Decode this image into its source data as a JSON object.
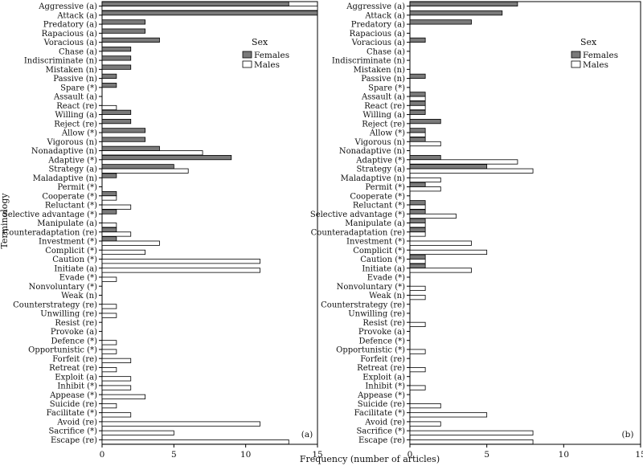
{
  "chart_data": [
    {
      "type": "bar",
      "panel_label": "(a)",
      "orientation": "horizontal",
      "categories": [
        "Aggressive (a)",
        "Attack (a)",
        "Predatory (a)",
        "Rapacious (a)",
        "Voracious (a)",
        "Chase (a)",
        "Indiscriminate (n)",
        "Mistaken (n)",
        "Passive (n)",
        "Spare (*)",
        "Assault (a)",
        "React (re)",
        "Willing (a)",
        "Reject (re)",
        "Allow (*)",
        "Vigorous (n)",
        "Nonadaptive (n)",
        "Adaptive (*)",
        "Strategy (a)",
        "Maladaptive (n)",
        "Permit (*)",
        "Cooperate (*)",
        "Reluctant (*)",
        "Selective advantage (*)",
        "Manipulate (a)",
        "Counteradaptation (re)",
        "Investment (*)",
        "Complicit (*)",
        "Caution (*)",
        "Initiate (a)",
        "Evade (*)",
        "Nonvoluntary (*)",
        "Weak (n)",
        "Counterstrategy (re)",
        "Unwilling (re)",
        "Resist (re)",
        "Provoke (a)",
        "Defence (*)",
        "Opportunistic (*)",
        "Forfeit (re)",
        "Retreat (re)",
        "Exploit (a)",
        "Inhibit (*)",
        "Appease (*)",
        "Suicide (re)",
        "Facilitate (*)",
        "Avoid (re)",
        "Sacrifice (*)",
        "Escape (re)"
      ],
      "series": [
        {
          "name": "Females",
          "color": "#7a7a7a",
          "values": [
            13,
            15,
            3,
            3,
            4,
            2,
            2,
            2,
            1,
            1,
            0,
            0,
            2,
            2,
            3,
            3,
            4,
            9,
            5,
            1,
            0,
            1,
            0,
            1,
            0,
            1,
            1,
            0,
            0,
            0,
            0,
            0,
            0,
            0,
            0,
            0,
            0,
            0,
            0,
            0,
            0,
            0,
            0,
            0,
            0,
            0,
            0,
            0,
            0
          ]
        },
        {
          "name": "Males",
          "color": "#ffffff",
          "values": [
            15,
            0,
            0,
            0,
            0,
            0,
            0,
            0,
            0,
            0,
            0,
            1,
            0,
            0,
            0,
            0,
            7,
            0,
            6,
            0,
            0,
            1,
            2,
            0,
            1,
            2,
            4,
            3,
            11,
            11,
            1,
            0,
            0,
            1,
            1,
            0,
            0,
            1,
            1,
            2,
            1,
            2,
            2,
            3,
            1,
            2,
            11,
            5,
            13
          ]
        }
      ],
      "xlim": [
        0,
        15
      ],
      "xticks": [
        0,
        5,
        10,
        15
      ],
      "ylabel": "Terminology",
      "legend": {
        "title": "Sex",
        "placement": "upper-right",
        "entries": [
          "Females",
          "Males"
        ]
      }
    },
    {
      "type": "bar",
      "panel_label": "(b)",
      "orientation": "horizontal",
      "categories": [
        "Aggressive (a)",
        "Attack (a)",
        "Predatory (a)",
        "Rapacious (a)",
        "Voracious (a)",
        "Chase (a)",
        "Indiscriminate (n)",
        "Mistaken (n)",
        "Passive (n)",
        "Spare (*)",
        "Assault (a)",
        "React (re)",
        "Willing (a)",
        "Reject (re)",
        "Allow (*)",
        "Vigorous (n)",
        "Nonadaptive (n)",
        "Adaptive (*)",
        "Strategy (a)",
        "Maladaptive (n)",
        "Permit (*)",
        "Cooperate (*)",
        "Reluctant (*)",
        "Selective advantage (*)",
        "Manipulate (a)",
        "Counteradaptation (re)",
        "Investment (*)",
        "Complicit (*)",
        "Caution (*)",
        "Initiate (a)",
        "Evade (*)",
        "Nonvoluntary (*)",
        "Weak (n)",
        "Counterstrategy (re)",
        "Unwilling (re)",
        "Resist (re)",
        "Provoke (a)",
        "Defence (*)",
        "Opportunistic (*)",
        "Forfeit (re)",
        "Retreat (re)",
        "Exploit (a)",
        "Inhibit (*)",
        "Appease (*)",
        "Suicide (re)",
        "Facilitate (*)",
        "Avoid (re)",
        "Sacrifice (*)",
        "Escape (re)"
      ],
      "series": [
        {
          "name": "Females",
          "color": "#7a7a7a",
          "values": [
            7,
            6,
            4,
            0,
            1,
            0,
            0,
            0,
            1,
            0,
            1,
            1,
            1,
            2,
            1,
            1,
            0,
            2,
            5,
            0,
            1,
            0,
            1,
            1,
            1,
            1,
            0,
            0,
            1,
            1,
            0,
            0,
            0,
            0,
            0,
            0,
            0,
            0,
            0,
            0,
            0,
            0,
            0,
            0,
            0,
            0,
            0,
            0,
            0
          ]
        },
        {
          "name": "Males",
          "color": "#ffffff",
          "values": [
            0,
            0,
            0,
            0,
            0,
            0,
            0,
            0,
            0,
            0,
            1,
            1,
            0,
            0,
            1,
            2,
            0,
            7,
            8,
            2,
            2,
            0,
            1,
            3,
            1,
            1,
            4,
            5,
            1,
            4,
            0,
            1,
            1,
            0,
            0,
            1,
            0,
            0,
            1,
            0,
            1,
            0,
            1,
            0,
            2,
            5,
            2,
            8,
            8
          ]
        }
      ],
      "xlim": [
        0,
        15
      ],
      "xticks": [
        0,
        5,
        10,
        15
      ],
      "legend": {
        "title": "Sex",
        "placement": "upper-right",
        "entries": [
          "Females",
          "Males"
        ]
      }
    }
  ],
  "xlabel": "Frequency (number of articles)"
}
